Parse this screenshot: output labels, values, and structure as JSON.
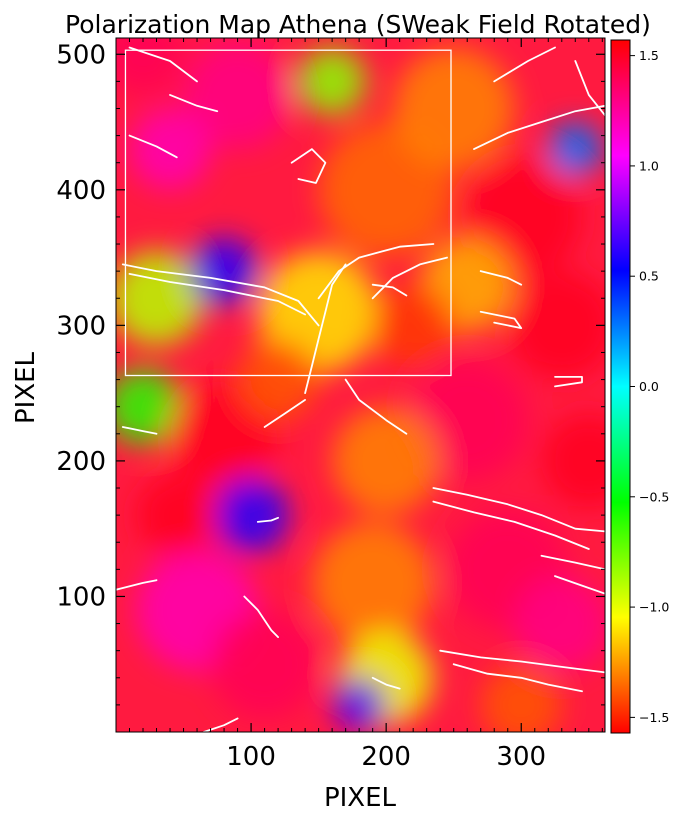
{
  "chart_data": {
    "type": "heatmap",
    "title": "Polarization Map Athena (SWeak Field Rotated)",
    "xlabel": "PIXEL",
    "ylabel": "PIXEL",
    "xlim": [
      0,
      362
    ],
    "ylim": [
      0,
      512
    ],
    "x_ticks": [
      100,
      200,
      300
    ],
    "y_ticks": [
      100,
      200,
      300,
      400,
      500
    ],
    "colorbar": {
      "range": [
        -1.5708,
        1.5708
      ],
      "ticks": [
        -1.5,
        -1.0,
        -0.5,
        0.0,
        0.5,
        1.0,
        1.5
      ],
      "tick_labels": [
        "−1.5",
        "−1.0",
        "−0.5",
        "0.0",
        "0.5",
        "1.0",
        "1.5"
      ],
      "colormap": "hsv"
    },
    "rectangle": {
      "x": [
        7,
        248
      ],
      "y": [
        263,
        503
      ]
    },
    "field_blobs": [
      {
        "x": 30,
        "y": 320,
        "v": -0.9,
        "r": 35
      },
      {
        "x": 80,
        "y": 340,
        "v": 0.6,
        "r": 25
      },
      {
        "x": 150,
        "y": 310,
        "v": -1.1,
        "r": 45
      },
      {
        "x": 200,
        "y": 400,
        "v": -1.35,
        "r": 50
      },
      {
        "x": 250,
        "y": 460,
        "v": -1.3,
        "r": 45
      },
      {
        "x": 90,
        "y": 470,
        "v": 1.3,
        "r": 40
      },
      {
        "x": 40,
        "y": 430,
        "v": 1.2,
        "r": 30
      },
      {
        "x": 300,
        "y": 380,
        "v": 1.5,
        "r": 45
      },
      {
        "x": 340,
        "y": 430,
        "v": 0.3,
        "r": 20
      },
      {
        "x": 330,
        "y": 300,
        "v": 1.5,
        "r": 40
      },
      {
        "x": 20,
        "y": 240,
        "v": -0.6,
        "r": 28
      },
      {
        "x": 80,
        "y": 220,
        "v": 1.5,
        "r": 40
      },
      {
        "x": 260,
        "y": 230,
        "v": 1.4,
        "r": 45
      },
      {
        "x": 200,
        "y": 200,
        "v": -1.3,
        "r": 40
      },
      {
        "x": 100,
        "y": 160,
        "v": 0.6,
        "r": 28
      },
      {
        "x": 60,
        "y": 90,
        "v": 1.2,
        "r": 45
      },
      {
        "x": 110,
        "y": 50,
        "v": 1.4,
        "r": 40
      },
      {
        "x": 190,
        "y": 110,
        "v": -1.3,
        "r": 45
      },
      {
        "x": 200,
        "y": 40,
        "v": -1.0,
        "r": 35
      },
      {
        "x": 290,
        "y": 120,
        "v": 1.4,
        "r": 45
      },
      {
        "x": 330,
        "y": 80,
        "v": 1.3,
        "r": 35
      },
      {
        "x": 180,
        "y": 20,
        "v": 0.7,
        "r": 20
      },
      {
        "x": 160,
        "y": 480,
        "v": -0.8,
        "r": 25
      },
      {
        "x": 260,
        "y": 330,
        "v": -1.2,
        "r": 35
      },
      {
        "x": 20,
        "y": 500,
        "v": 1.4,
        "r": 30
      },
      {
        "x": 350,
        "y": 200,
        "v": 1.5,
        "r": 35
      },
      {
        "x": 220,
        "y": 300,
        "v": -1.45,
        "r": 30
      },
      {
        "x": 120,
        "y": 260,
        "v": -1.4,
        "r": 30
      },
      {
        "x": 300,
        "y": 20,
        "v": -1.4,
        "r": 30
      },
      {
        "x": 45,
        "y": 160,
        "v": 1.5,
        "r": 30
      }
    ],
    "contours": [
      [
        [
          5,
          345
        ],
        [
          30,
          340
        ],
        [
          70,
          335
        ],
        [
          110,
          328
        ],
        [
          135,
          318
        ],
        [
          150,
          300
        ]
      ],
      [
        [
          10,
          338
        ],
        [
          40,
          332
        ],
        [
          80,
          326
        ],
        [
          120,
          318
        ],
        [
          140,
          308
        ]
      ],
      [
        [
          150,
          320
        ],
        [
          165,
          340
        ],
        [
          180,
          350
        ],
        [
          210,
          358
        ],
        [
          235,
          360
        ]
      ],
      [
        [
          140,
          250
        ],
        [
          145,
          270
        ],
        [
          150,
          290
        ],
        [
          155,
          310
        ],
        [
          160,
          330
        ],
        [
          170,
          345
        ]
      ],
      [
        [
          170,
          260
        ],
        [
          180,
          245
        ],
        [
          200,
          230
        ],
        [
          215,
          220
        ]
      ],
      [
        [
          140,
          245
        ],
        [
          125,
          235
        ],
        [
          110,
          225
        ]
      ],
      [
        [
          190,
          320
        ],
        [
          205,
          335
        ],
        [
          225,
          345
        ],
        [
          245,
          350
        ]
      ],
      [
        [
          270,
          340
        ],
        [
          290,
          335
        ],
        [
          300,
          330
        ]
      ],
      [
        [
          190,
          330
        ],
        [
          205,
          328
        ],
        [
          215,
          322
        ]
      ],
      [
        [
          40,
          470
        ],
        [
          60,
          462
        ],
        [
          75,
          458
        ]
      ],
      [
        [
          10,
          440
        ],
        [
          30,
          432
        ],
        [
          45,
          424
        ]
      ],
      [
        [
          130,
          420
        ],
        [
          145,
          430
        ],
        [
          155,
          420
        ],
        [
          148,
          405
        ],
        [
          135,
          408
        ]
      ],
      [
        [
          265,
          430
        ],
        [
          290,
          442
        ],
        [
          315,
          450
        ],
        [
          340,
          458
        ],
        [
          362,
          462
        ]
      ],
      [
        [
          280,
          480
        ],
        [
          305,
          495
        ],
        [
          325,
          505
        ]
      ],
      [
        [
          10,
          505
        ],
        [
          40,
          495
        ],
        [
          60,
          480
        ]
      ],
      [
        [
          340,
          495
        ],
        [
          350,
          470
        ],
        [
          362,
          455
        ]
      ],
      [
        [
          235,
          180
        ],
        [
          260,
          175
        ],
        [
          290,
          168
        ],
        [
          315,
          160
        ],
        [
          340,
          150
        ],
        [
          362,
          148
        ]
      ],
      [
        [
          235,
          170
        ],
        [
          265,
          162
        ],
        [
          295,
          155
        ],
        [
          325,
          145
        ],
        [
          350,
          135
        ]
      ],
      [
        [
          325,
          115
        ],
        [
          345,
          108
        ],
        [
          362,
          102
        ]
      ],
      [
        [
          250,
          50
        ],
        [
          275,
          43
        ],
        [
          300,
          40
        ],
        [
          320,
          35
        ],
        [
          345,
          30
        ]
      ],
      [
        [
          240,
          60
        ],
        [
          270,
          55
        ],
        [
          300,
          52
        ],
        [
          330,
          48
        ],
        [
          362,
          44
        ]
      ],
      [
        [
          95,
          100
        ],
        [
          105,
          90
        ],
        [
          115,
          75
        ],
        [
          120,
          70
        ]
      ],
      [
        [
          270,
          310
        ],
        [
          295,
          305
        ],
        [
          300,
          298
        ],
        [
          280,
          302
        ]
      ],
      [
        [
          315,
          130
        ],
        [
          340,
          125
        ],
        [
          362,
          120
        ]
      ],
      [
        [
          0,
          105
        ],
        [
          20,
          110
        ],
        [
          30,
          112
        ]
      ],
      [
        [
          325,
          255
        ],
        [
          345,
          258
        ],
        [
          345,
          262
        ],
        [
          325,
          262
        ]
      ],
      [
        [
          5,
          225
        ],
        [
          20,
          222
        ],
        [
          30,
          220
        ]
      ],
      [
        [
          105,
          155
        ],
        [
          115,
          156
        ],
        [
          120,
          158
        ]
      ],
      [
        [
          190,
          40
        ],
        [
          200,
          35
        ],
        [
          210,
          32
        ]
      ],
      [
        [
          65,
          0
        ],
        [
          80,
          5
        ],
        [
          90,
          10
        ]
      ]
    ]
  }
}
